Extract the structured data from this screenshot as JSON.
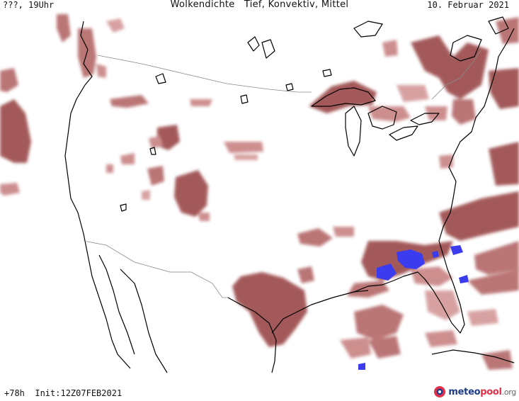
{
  "header": {
    "valid_time": "???, 19Uhr",
    "title": "Wolkendichte   Tief, Konvektiv, Mittel",
    "date": "10. Februar 2021"
  },
  "footer": {
    "run_info": "+78h  Init:12Z07FEB2021",
    "brand_part1": "meteo",
    "brand_part2": "pool",
    "brand_part3": ".org"
  },
  "map": {
    "region": "USA",
    "layers": [
      "low-cloud-density",
      "convective-cloud-density"
    ],
    "colors": {
      "low_cloud_dark": "#9c4b4b",
      "low_cloud_mid": "#b56a6a",
      "low_cloud_light": "#d49a9a",
      "convective": "#3b3bf0",
      "coastline": "#000000",
      "border": "#888888"
    }
  }
}
